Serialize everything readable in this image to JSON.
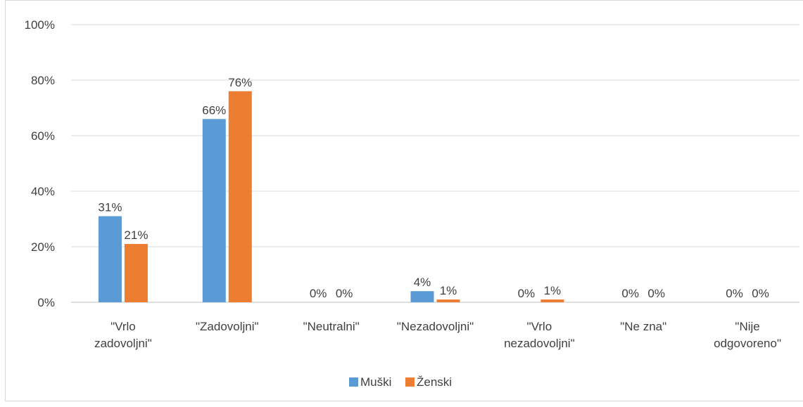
{
  "chart_data": {
    "type": "bar",
    "title": "",
    "categories": [
      [
        "\"Vrlo",
        "zadovoljni\""
      ],
      [
        "\"Zadovoljni\""
      ],
      [
        "\"Neutralni\""
      ],
      [
        "\"Nezadovoljni\""
      ],
      [
        "\"Vrlo",
        "nezadovoljni\""
      ],
      [
        "\"Ne zna\""
      ],
      [
        "\"Nije",
        "odgovoreno\""
      ]
    ],
    "series": [
      {
        "name": "Muški",
        "color": "#5B9BD5",
        "values": [
          31,
          66,
          0,
          4,
          0,
          0,
          0
        ],
        "labels": [
          "31%",
          "66%",
          "0%",
          "4%",
          "0%",
          "0%",
          "0%"
        ]
      },
      {
        "name": "Ženski",
        "color": "#ED7D31",
        "values": [
          21,
          76,
          0,
          1,
          1,
          0,
          0
        ],
        "labels": [
          "21%",
          "76%",
          "0%",
          "1%",
          "1%",
          "0%",
          "0%"
        ]
      }
    ],
    "ylim": [
      0,
      100
    ],
    "yticks": [
      "0%",
      "20%",
      "40%",
      "60%",
      "80%",
      "100%"
    ],
    "grid": true,
    "legend": "bottom",
    "xlabel": "",
    "ylabel": ""
  }
}
